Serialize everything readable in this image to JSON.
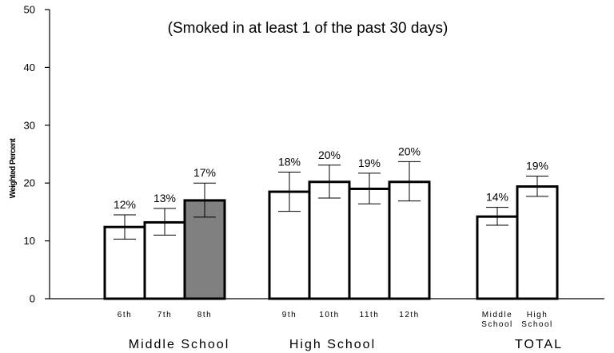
{
  "chart_data": {
    "type": "bar",
    "subtitle": "(Smoked in at least 1 of the past 30 days)",
    "ylabel": "Weighted Percent",
    "ylim": [
      0,
      50
    ],
    "yticks": [
      "0",
      "10",
      "20",
      "30",
      "40",
      "50"
    ],
    "grid": false,
    "groups": [
      {
        "name": "Middle School",
        "bars": [
          {
            "category": "6th",
            "value": 12.4,
            "label": "12%",
            "err_low": 10.3,
            "err_high": 14.5,
            "color": "#ffffff"
          },
          {
            "category": "7th",
            "value": 13.2,
            "label": "13%",
            "err_low": 11.0,
            "err_high": 15.6,
            "color": "#ffffff"
          },
          {
            "category": "8th",
            "value": 17.0,
            "label": "17%",
            "err_low": 14.1,
            "err_high": 20.0,
            "color": "#808080"
          }
        ]
      },
      {
        "name": "High School",
        "bars": [
          {
            "category": "9th",
            "value": 18.5,
            "label": "18%",
            "err_low": 15.1,
            "err_high": 21.9,
            "color": "#ffffff"
          },
          {
            "category": "10th",
            "value": 20.2,
            "label": "20%",
            "err_low": 17.4,
            "err_high": 23.1,
            "color": "#ffffff"
          },
          {
            "category": "11th",
            "value": 19.0,
            "label": "19%",
            "err_low": 16.4,
            "err_high": 21.7,
            "color": "#ffffff"
          },
          {
            "category": "12th",
            "value": 20.2,
            "label": "20%",
            "err_low": 16.9,
            "err_high": 23.7,
            "color": "#ffffff"
          }
        ]
      },
      {
        "name": "TOTAL",
        "bars": [
          {
            "category": "Middle School",
            "value": 14.2,
            "label": "14%",
            "err_low": 12.7,
            "err_high": 15.8,
            "color": "#ffffff"
          },
          {
            "category": "High School",
            "value": 19.4,
            "label": "19%",
            "err_low": 17.7,
            "err_high": 21.2,
            "color": "#ffffff"
          }
        ]
      }
    ]
  }
}
